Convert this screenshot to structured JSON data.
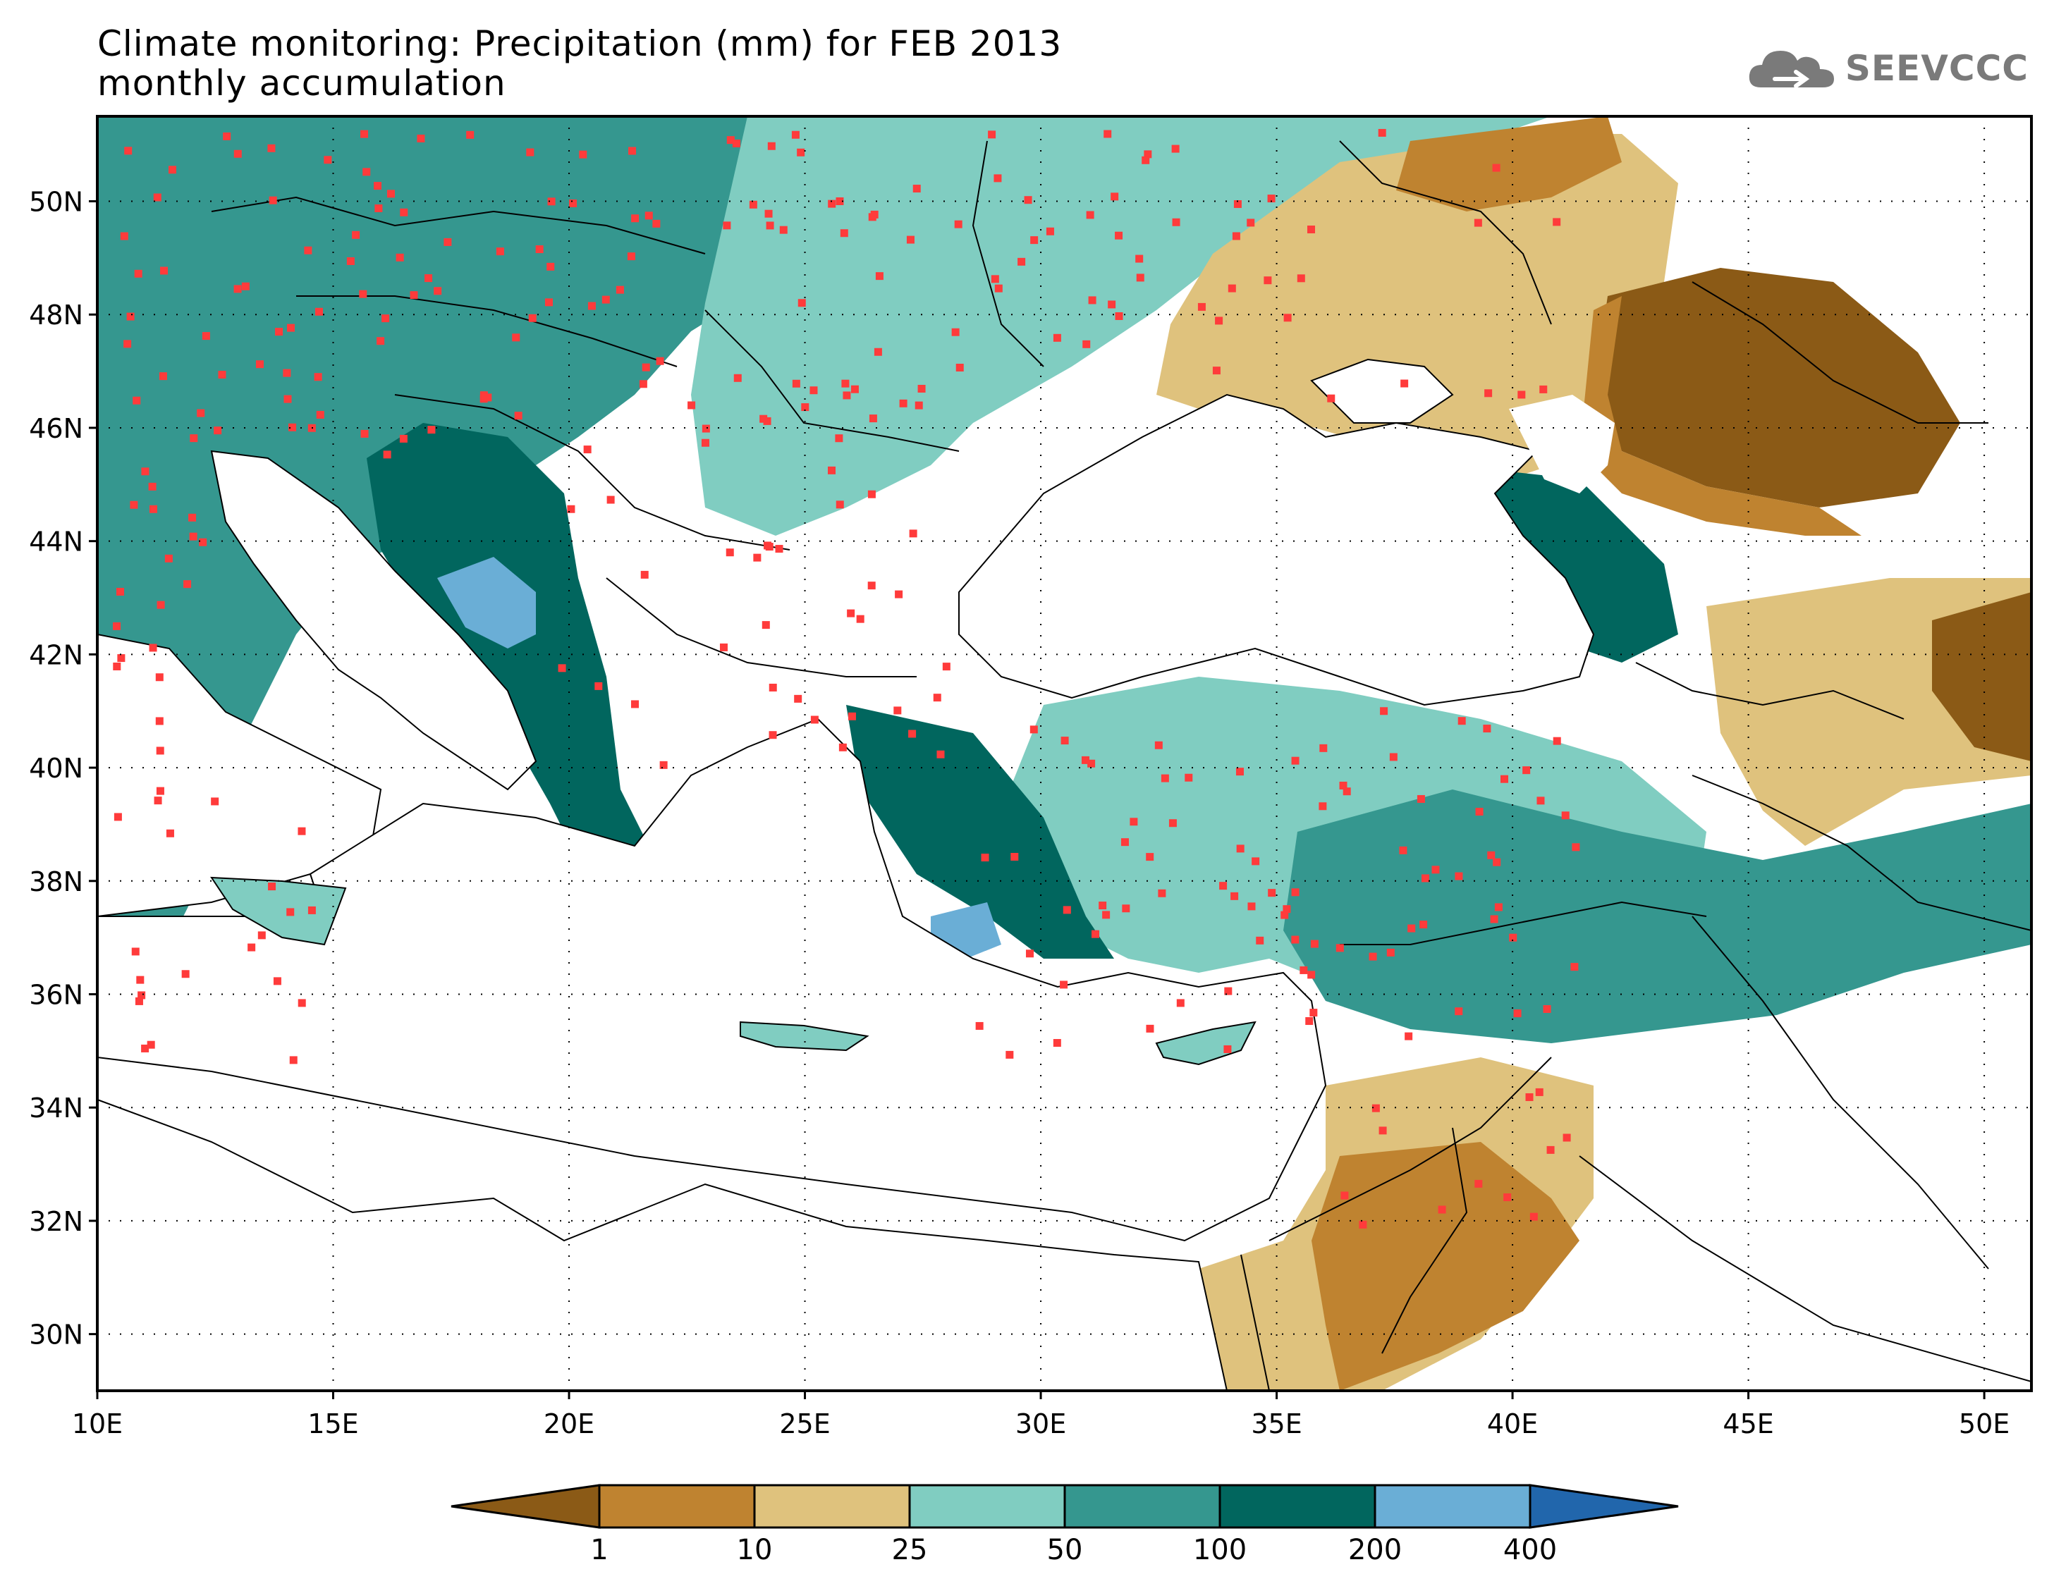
{
  "title": {
    "line1": "Climate monitoring: Precipitation (mm) for FEB 2013",
    "line2": "monthly accumulation"
  },
  "logo": {
    "text": "SEEVCCC",
    "icon": "cloud-icon"
  },
  "map": {
    "lon_range": [
      10,
      51
    ],
    "lat_range": [
      29,
      51.5
    ],
    "x_ticks": [
      "10E",
      "15E",
      "20E",
      "25E",
      "30E",
      "35E",
      "40E",
      "45E",
      "50E"
    ],
    "y_ticks": [
      "30N",
      "32N",
      "34N",
      "36N",
      "38N",
      "40N",
      "42N",
      "44N",
      "46N",
      "48N",
      "50N"
    ],
    "grid": "dotted"
  },
  "colorbar": {
    "levels": [
      "1",
      "10",
      "25",
      "50",
      "100",
      "200",
      "400"
    ],
    "colors": [
      "#8b5a16",
      "#bf8330",
      "#dfc27d",
      "#80cdc1",
      "#35978f",
      "#01665e",
      "#6aaed6",
      "#2166ac"
    ],
    "under_color": "#8b5a16",
    "over_color": "#2166ac"
  },
  "stations": {
    "color": "#ff3b3b",
    "symbol": "square"
  }
}
